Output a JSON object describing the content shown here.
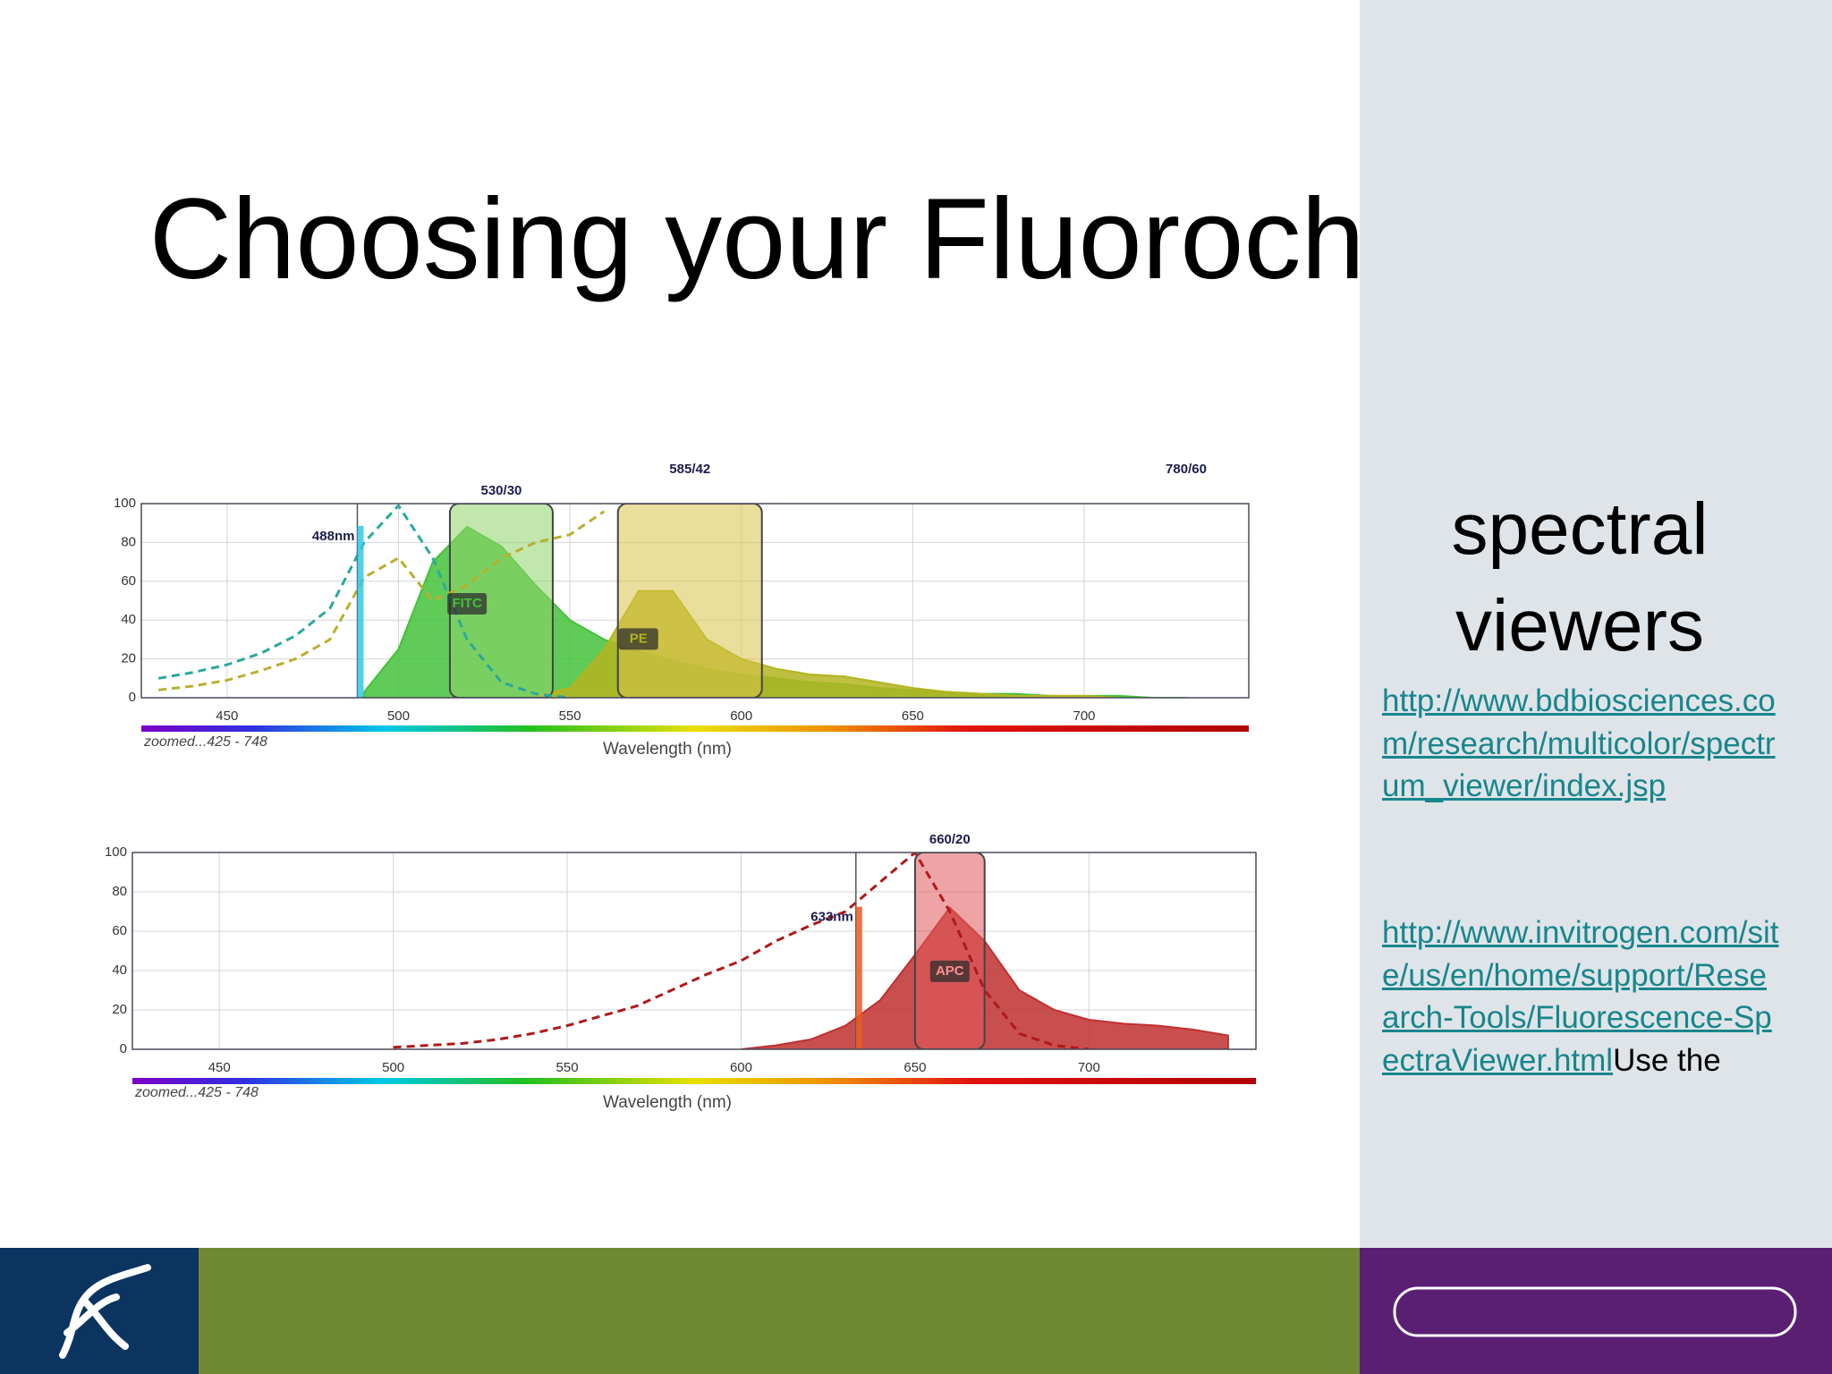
{
  "title": "Choosing your Fluorochromes",
  "sidebar": {
    "heading": "spectral viewers",
    "links": [
      "http://www.bdbiosciences.com/research/multicolor/spectrum_viewer/index.jsp",
      "http://www.invitrogen.com/site/us/en/home/support/Research-Tools/Fluorescence-SpectraViewer.html"
    ],
    "text": "Use the"
  },
  "chart_data": [
    {
      "type": "spectrum",
      "xlabel": "Wavelength (nm)",
      "note": "zoomed...425 - 748",
      "xlim": [
        425,
        748
      ],
      "ylim": [
        0,
        100
      ],
      "xticks": [
        450,
        500,
        550,
        600,
        650,
        700
      ],
      "yticks": [
        0,
        20,
        40,
        60,
        80,
        100
      ],
      "grid": true,
      "x": [
        430,
        440,
        450,
        460,
        470,
        480,
        490,
        500,
        510,
        520,
        530,
        540,
        550,
        560,
        570,
        580,
        590,
        600,
        610,
        620,
        630,
        640,
        650,
        660,
        670,
        680,
        690,
        700,
        710,
        720,
        730,
        740
      ],
      "filters": [
        {
          "label": "530/30",
          "from": 515,
          "to": 545,
          "color": "#8fd46a"
        },
        {
          "label": "585/42",
          "from": 564,
          "to": 606,
          "color": "#d9c24a"
        },
        {
          "label": "780/60",
          "from": 750,
          "to": 810,
          "color": "#c07070"
        }
      ],
      "lasers": [
        {
          "label": "488nm",
          "value": 488,
          "color": "#30c8e8"
        }
      ],
      "series": [
        {
          "name": "FITC",
          "style": "area",
          "color": "#44c23a",
          "values": [
            null,
            null,
            null,
            null,
            null,
            null,
            3,
            25,
            70,
            88,
            78,
            58,
            40,
            30,
            24,
            19,
            15,
            12,
            10,
            8,
            7,
            5,
            4,
            3,
            2,
            2,
            1,
            1,
            1,
            0,
            0,
            null
          ]
        },
        {
          "name": "PE",
          "style": "area",
          "color": "#b4b420",
          "values": [
            null,
            null,
            null,
            null,
            null,
            null,
            null,
            null,
            null,
            null,
            null,
            1,
            5,
            25,
            55,
            55,
            30,
            20,
            15,
            12,
            11,
            8,
            5,
            3,
            2,
            1,
            1,
            1,
            0,
            null,
            null,
            null
          ]
        },
        {
          "style": "dashed",
          "color": "#2aa99c",
          "values": [
            10,
            13,
            17,
            23,
            32,
            46,
            80,
            99,
            72,
            30,
            8,
            2,
            0,
            null,
            null,
            null,
            null,
            null,
            null,
            null,
            null,
            null,
            null,
            null,
            null,
            null,
            null,
            null,
            null,
            null,
            null,
            null
          ]
        },
        {
          "style": "dashed",
          "color": "#b8b030",
          "values": [
            4,
            6,
            9,
            14,
            20,
            30,
            62,
            72,
            50,
            58,
            72,
            80,
            84,
            96,
            null,
            null,
            null,
            null,
            null,
            null,
            null,
            null,
            null,
            null,
            null,
            null,
            null,
            null,
            null,
            null,
            null,
            null
          ]
        }
      ]
    },
    {
      "type": "spectrum",
      "xlabel": "Wavelength (nm)",
      "note": "zoomed...425 - 748",
      "xlim": [
        425,
        748
      ],
      "ylim": [
        0,
        100
      ],
      "xticks": [
        450,
        500,
        550,
        600,
        650,
        700
      ],
      "yticks": [
        0,
        20,
        40,
        60,
        80,
        100
      ],
      "grid": true,
      "x": [
        430,
        440,
        450,
        460,
        470,
        480,
        490,
        500,
        510,
        520,
        530,
        540,
        550,
        560,
        570,
        580,
        590,
        600,
        610,
        620,
        630,
        640,
        650,
        660,
        670,
        680,
        690,
        700,
        710,
        720,
        730,
        740
      ],
      "filters": [
        {
          "label": "660/20",
          "from": 650,
          "to": 670,
          "color": "#e05a5a"
        }
      ],
      "lasers": [
        {
          "label": "633nm",
          "value": 633,
          "color": "#e85a20"
        }
      ],
      "series": [
        {
          "name": "APC",
          "style": "area",
          "color": "#c03030",
          "values": [
            null,
            null,
            null,
            null,
            null,
            null,
            null,
            null,
            null,
            null,
            null,
            null,
            null,
            null,
            null,
            null,
            null,
            0,
            2,
            5,
            12,
            25,
            48,
            72,
            55,
            30,
            20,
            15,
            13,
            12,
            10,
            7
          ]
        },
        {
          "style": "dashed",
          "color": "#b01818",
          "values": [
            null,
            null,
            null,
            null,
            null,
            null,
            null,
            1,
            2,
            3,
            5,
            8,
            12,
            17,
            22,
            30,
            38,
            45,
            55,
            63,
            70,
            85,
            100,
            70,
            30,
            8,
            2,
            0,
            null,
            null,
            null,
            null
          ]
        }
      ]
    }
  ]
}
